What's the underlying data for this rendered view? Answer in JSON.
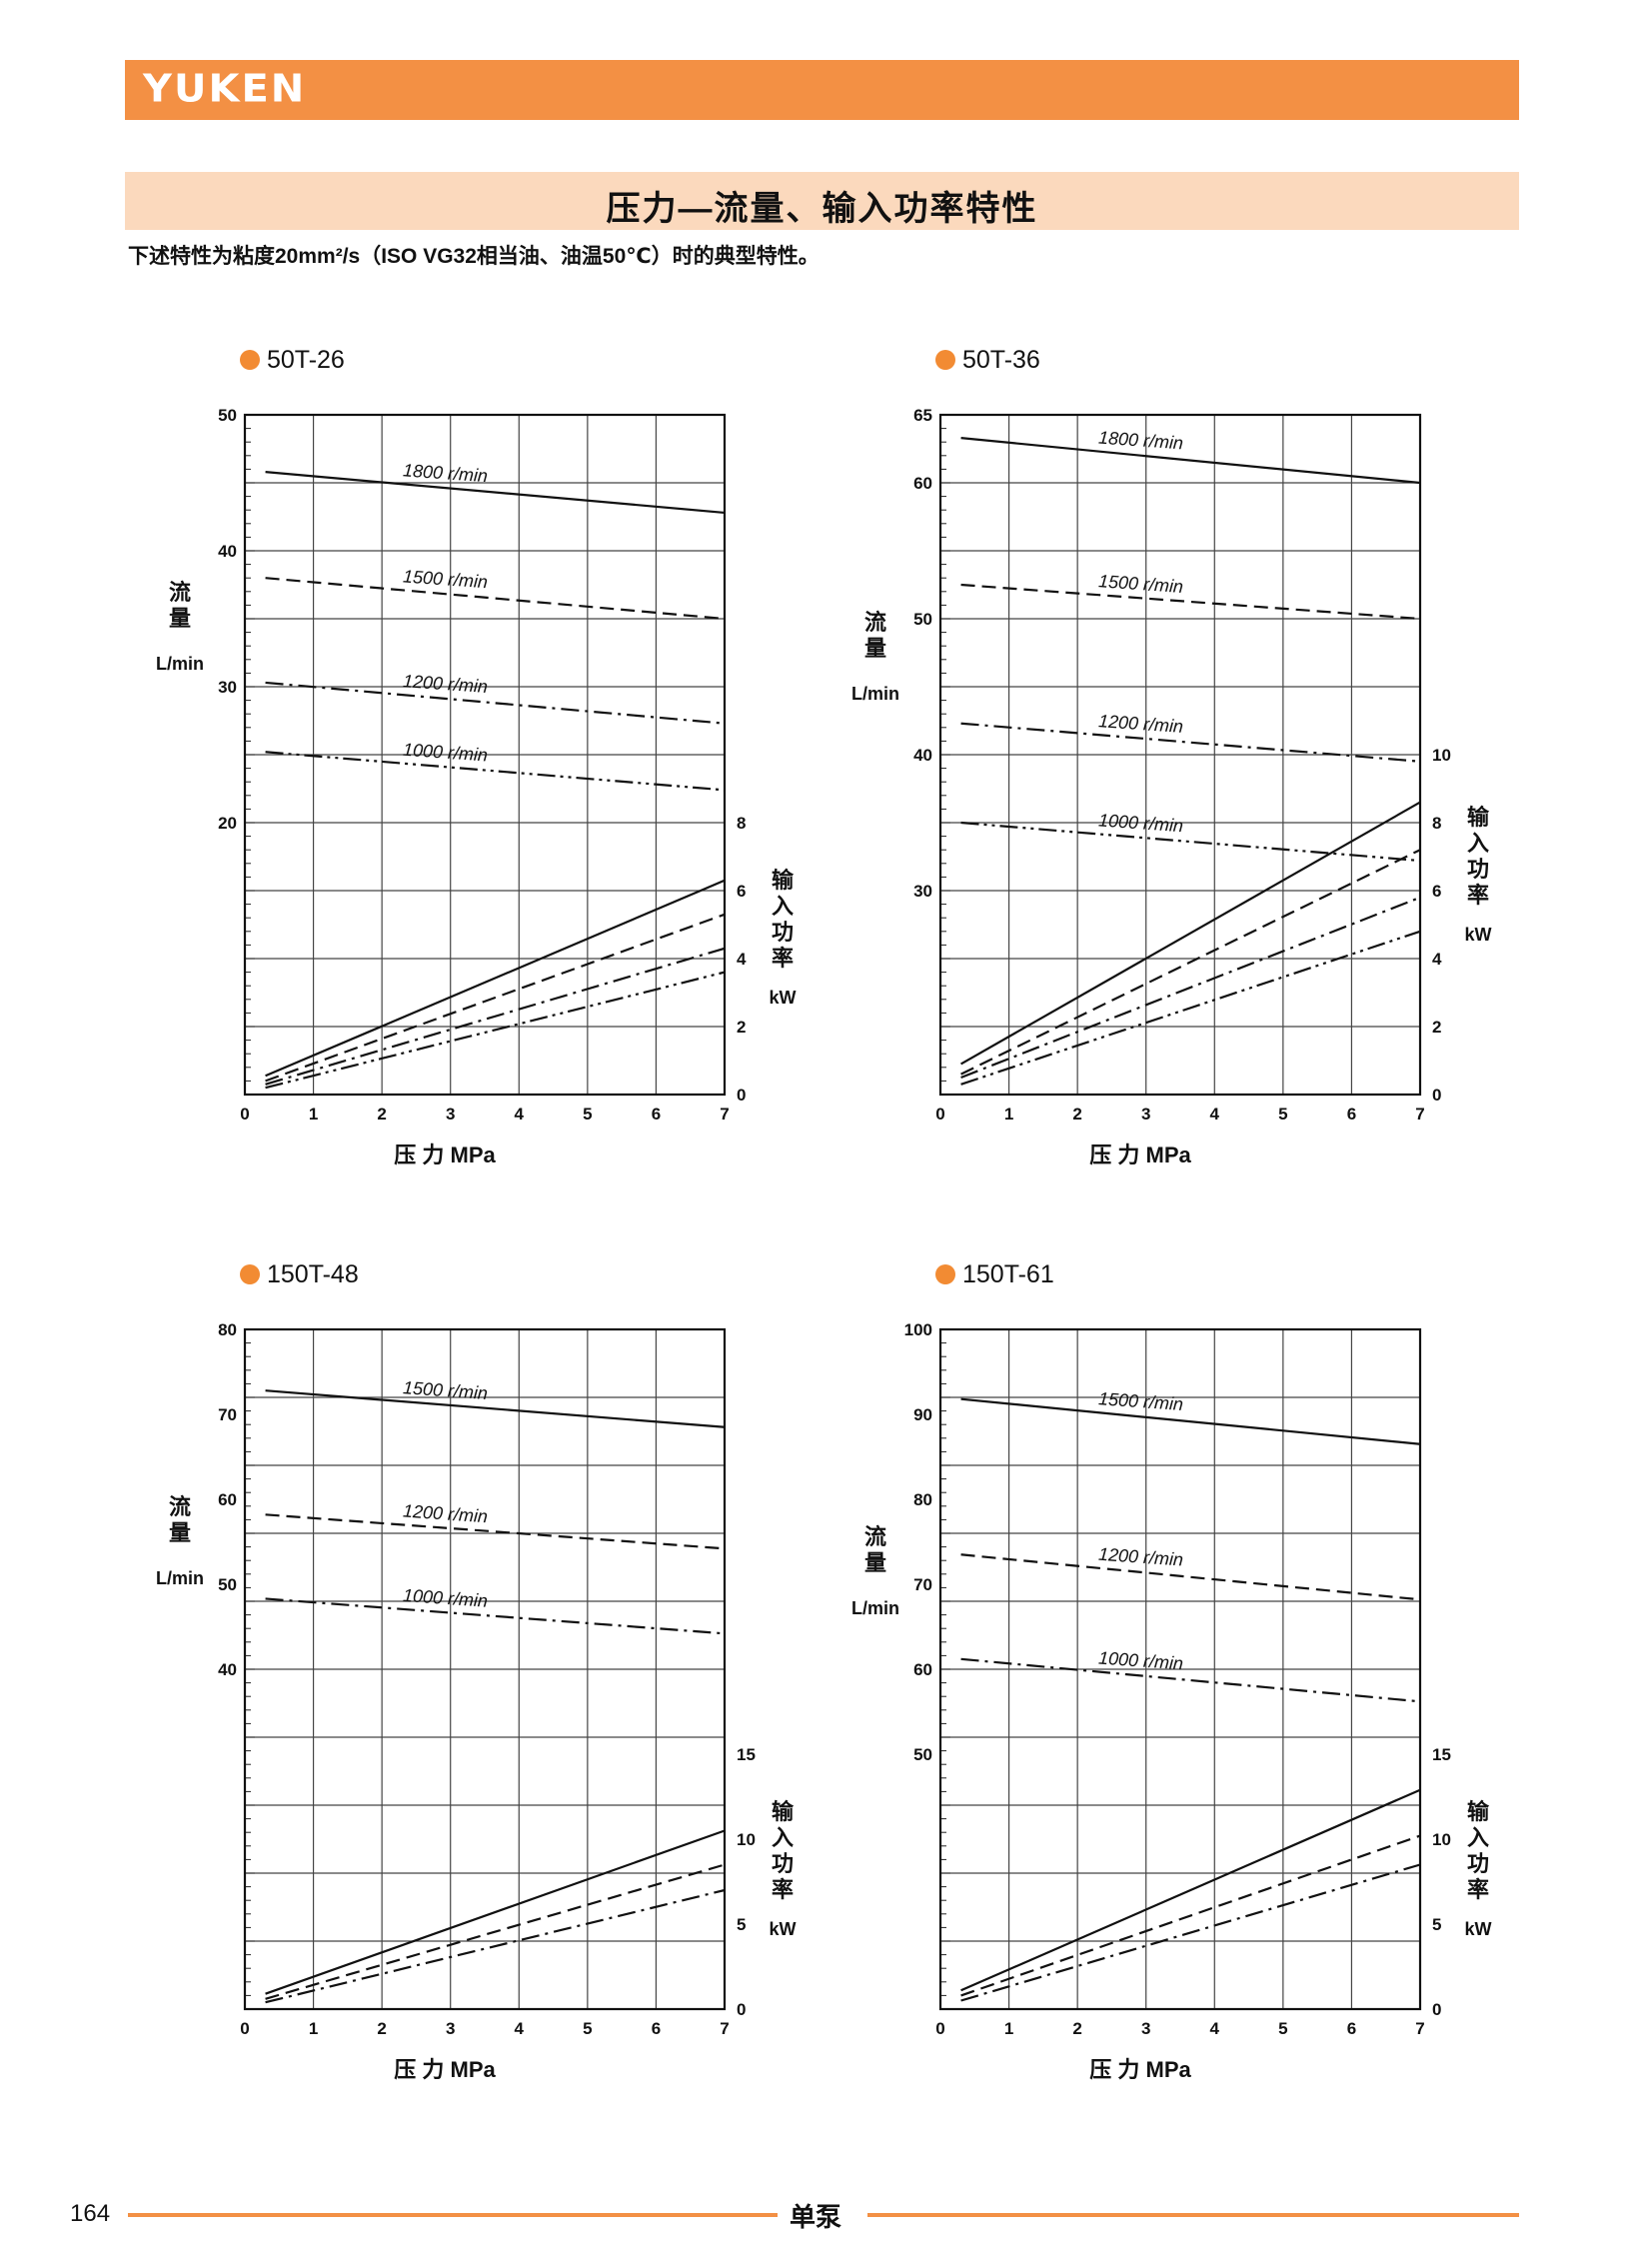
{
  "header": {
    "logo": "YUKEN",
    "brand_color": "#f39044"
  },
  "title": "压力—流量、输入功率特性",
  "subtitle": "下述特性为粘度20mm²/s（ISO VG32相当油、油温50℃）时的典型特性。",
  "footer": {
    "page": "164",
    "section": "单泵"
  },
  "chart_data": [
    {
      "type": "line",
      "title": "50T-26",
      "xlabel": "压 力  MPa",
      "ylabel_chars": [
        "流",
        "量"
      ],
      "yunit": "L/min",
      "y2label_chars": [
        "输",
        "入",
        "功",
        "率"
      ],
      "y2unit": "kW",
      "xlim": [
        0,
        7
      ],
      "xticks": [
        0,
        1,
        2,
        3,
        4,
        5,
        6,
        7
      ],
      "ylim": [
        0,
        50
      ],
      "yticks": [
        20,
        30,
        40,
        50
      ],
      "y2lim": [
        0,
        20
      ],
      "y2ticks": [
        0,
        2,
        4,
        6,
        8
      ],
      "flow_series": [
        {
          "name": "1800 r/min",
          "style": "solid",
          "x": [
            0.3,
            7
          ],
          "y": [
            45.8,
            42.8
          ]
        },
        {
          "name": "1500 r/min",
          "style": "dash",
          "x": [
            0.3,
            7
          ],
          "y": [
            38,
            35
          ]
        },
        {
          "name": "1200 r/min",
          "style": "dashdot",
          "x": [
            0.3,
            7
          ],
          "y": [
            30.3,
            27.3
          ]
        },
        {
          "name": "1000 r/min",
          "style": "dashdotdot",
          "x": [
            0.3,
            7
          ],
          "y": [
            25.2,
            22.4
          ]
        }
      ],
      "power_series": [
        {
          "rpm": "1800 r/min",
          "style": "solid",
          "x": [
            0.3,
            7
          ],
          "y": [
            0.55,
            6.3
          ]
        },
        {
          "rpm": "1500 r/min",
          "style": "dash",
          "x": [
            0.3,
            7
          ],
          "y": [
            0.4,
            5.3
          ]
        },
        {
          "rpm": "1200 r/min",
          "style": "dashdot",
          "x": [
            0.3,
            7
          ],
          "y": [
            0.3,
            4.3
          ]
        },
        {
          "rpm": "1000 r/min",
          "style": "dashdotdot",
          "x": [
            0.3,
            7
          ],
          "y": [
            0.2,
            3.6
          ]
        }
      ]
    },
    {
      "type": "line",
      "title": "50T-36",
      "xlabel": "压 力  MPa",
      "ylabel_chars": [
        "流",
        "量"
      ],
      "yunit": "L/min",
      "y2label_chars": [
        "输",
        "入",
        "功",
        "率"
      ],
      "y2unit": "kW",
      "xlim": [
        0,
        7
      ],
      "xticks": [
        0,
        1,
        2,
        3,
        4,
        5,
        6,
        7
      ],
      "ylim": [
        15,
        65
      ],
      "yticks": [
        30,
        40,
        50,
        60,
        65
      ],
      "y2lim": [
        0,
        20
      ],
      "y2ticks": [
        0,
        2,
        4,
        6,
        8,
        10
      ],
      "flow_series": [
        {
          "name": "1800 r/min",
          "style": "solid",
          "x": [
            0.3,
            7
          ],
          "y": [
            63.3,
            60
          ]
        },
        {
          "name": "1500 r/min",
          "style": "dash",
          "x": [
            0.3,
            7
          ],
          "y": [
            52.5,
            50
          ]
        },
        {
          "name": "1200 r/min",
          "style": "dashdot",
          "x": [
            0.3,
            7
          ],
          "y": [
            42.3,
            39.5
          ]
        },
        {
          "name": "1000 r/min",
          "style": "dashdotdot",
          "x": [
            0.3,
            7
          ],
          "y": [
            35,
            32.2
          ]
        }
      ],
      "power_series": [
        {
          "rpm": "1800 r/min",
          "style": "solid",
          "x": [
            0.3,
            7
          ],
          "y": [
            0.9,
            8.6
          ]
        },
        {
          "rpm": "1500 r/min",
          "style": "dash",
          "x": [
            0.3,
            7
          ],
          "y": [
            0.6,
            7.2
          ]
        },
        {
          "rpm": "1200 r/min",
          "style": "dashdot",
          "x": [
            0.3,
            7
          ],
          "y": [
            0.5,
            5.8
          ]
        },
        {
          "rpm": "1000 r/min",
          "style": "dashdotdot",
          "x": [
            0.3,
            7
          ],
          "y": [
            0.3,
            4.8
          ]
        }
      ]
    },
    {
      "type": "line",
      "title": "150T-48",
      "xlabel": "压 力  MPa",
      "ylabel_chars": [
        "流",
        "量"
      ],
      "yunit": "L/min",
      "y2label_chars": [
        "输",
        "入",
        "功",
        "率"
      ],
      "y2unit": "kW",
      "xlim": [
        0,
        7
      ],
      "xticks": [
        0,
        1,
        2,
        3,
        4,
        5,
        6,
        7
      ],
      "ylim": [
        0,
        80
      ],
      "yticks": [
        40,
        50,
        60,
        70,
        80
      ],
      "y2lim": [
        0,
        40
      ],
      "y2ticks": [
        0,
        5,
        10,
        15
      ],
      "flow_series": [
        {
          "name": "1500 r/min",
          "style": "solid",
          "x": [
            0.3,
            7
          ],
          "y": [
            72.8,
            68.5
          ]
        },
        {
          "name": "1200 r/min",
          "style": "dash",
          "x": [
            0.3,
            7
          ],
          "y": [
            58.2,
            54.2
          ]
        },
        {
          "name": "1000 r/min",
          "style": "dashdot",
          "x": [
            0.3,
            7
          ],
          "y": [
            48.3,
            44.2
          ]
        }
      ],
      "power_series": [
        {
          "rpm": "1500 r/min",
          "style": "solid",
          "x": [
            0.3,
            7
          ],
          "y": [
            0.9,
            10.5
          ]
        },
        {
          "rpm": "1200 r/min",
          "style": "dash",
          "x": [
            0.3,
            7
          ],
          "y": [
            0.6,
            8.5
          ]
        },
        {
          "rpm": "1000 r/min",
          "style": "dashdot",
          "x": [
            0.3,
            7
          ],
          "y": [
            0.4,
            7.0
          ]
        }
      ]
    },
    {
      "type": "line",
      "title": "150T-61",
      "xlabel": "压 力  MPa",
      "ylabel_chars": [
        "流",
        "量"
      ],
      "yunit": "L/min",
      "y2label_chars": [
        "输",
        "入",
        "功",
        "率"
      ],
      "y2unit": "kW",
      "xlim": [
        0,
        7
      ],
      "xticks": [
        0,
        1,
        2,
        3,
        4,
        5,
        6,
        7
      ],
      "ylim": [
        20,
        100
      ],
      "yticks": [
        50,
        60,
        70,
        80,
        90,
        100
      ],
      "y2lim": [
        0,
        40
      ],
      "y2ticks": [
        0,
        5,
        10,
        15
      ],
      "flow_series": [
        {
          "name": "1500 r/min",
          "style": "solid",
          "x": [
            0.3,
            7
          ],
          "y": [
            91.8,
            86.5
          ]
        },
        {
          "name": "1200 r/min",
          "style": "dash",
          "x": [
            0.3,
            7
          ],
          "y": [
            73.5,
            68.2
          ]
        },
        {
          "name": "1000 r/min",
          "style": "dashdot",
          "x": [
            0.3,
            7
          ],
          "y": [
            61.2,
            56.2
          ]
        }
      ],
      "power_series": [
        {
          "rpm": "1500 r/min",
          "style": "solid",
          "x": [
            0.3,
            7
          ],
          "y": [
            1.1,
            12.9
          ]
        },
        {
          "rpm": "1200 r/min",
          "style": "dash",
          "x": [
            0.3,
            7
          ],
          "y": [
            0.8,
            10.2
          ]
        },
        {
          "rpm": "1000 r/min",
          "style": "dashdot",
          "x": [
            0.3,
            7
          ],
          "y": [
            0.5,
            8.5
          ]
        }
      ]
    }
  ]
}
